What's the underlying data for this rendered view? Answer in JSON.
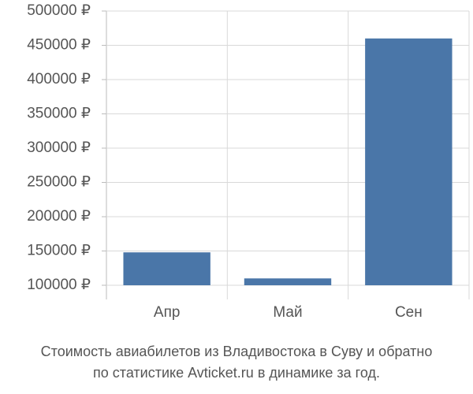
{
  "chart_data": {
    "type": "bar",
    "title": [
      "Стоимость авиабилетов из Владивостока в Суву и обратно",
      "по статистике Avticket.ru в динамике за год."
    ],
    "categories": [
      "Апр",
      "Май",
      "Сен"
    ],
    "values": [
      148000,
      110000,
      460000
    ],
    "color": "#4a76a8",
    "ylim": [
      100000,
      500000
    ],
    "yticks": [
      {
        "value": 100000,
        "label": "100000 ₽"
      },
      {
        "value": 150000,
        "label": "150000 ₽"
      },
      {
        "value": 200000,
        "label": "200000 ₽"
      },
      {
        "value": 250000,
        "label": "250000 ₽"
      },
      {
        "value": 300000,
        "label": "300000 ₽"
      },
      {
        "value": 350000,
        "label": "350000 ₽"
      },
      {
        "value": 400000,
        "label": "400000 ₽"
      },
      {
        "value": 450000,
        "label": "450000 ₽"
      },
      {
        "value": 500000,
        "label": "500000 ₽"
      }
    ],
    "grid": true
  }
}
